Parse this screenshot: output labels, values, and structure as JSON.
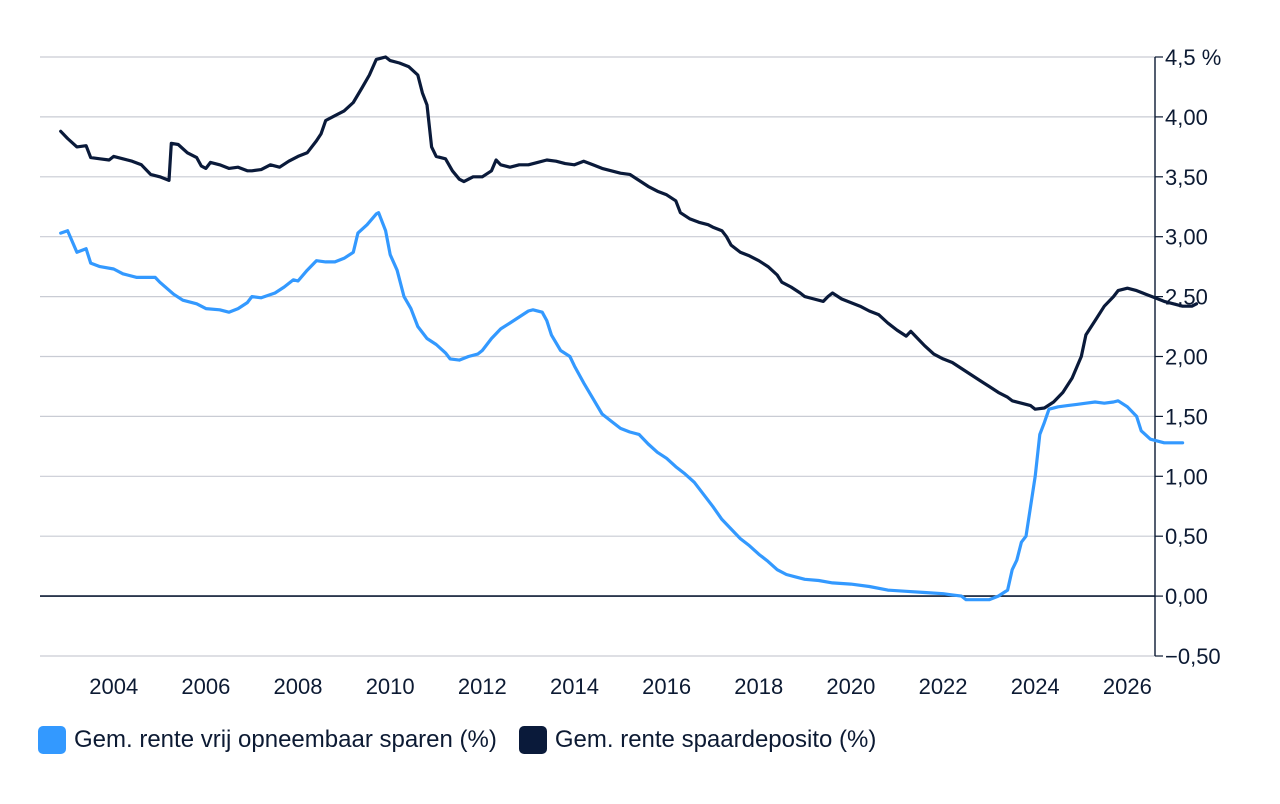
{
  "chart_data": {
    "type": "line",
    "title": "",
    "xlabel": "",
    "ylabel": "",
    "y_axis_side": "right",
    "ylim": [
      -0.5,
      4.5
    ],
    "xlim": [
      2002.4,
      2026.6
    ],
    "grid": true,
    "legend_position": "bottom-left",
    "y_ticks": [
      {
        "value": 4.5,
        "label": "4,5 %"
      },
      {
        "value": 4.0,
        "label": "4,00"
      },
      {
        "value": 3.5,
        "label": "3,50"
      },
      {
        "value": 3.0,
        "label": "3,00"
      },
      {
        "value": 2.5,
        "label": "2,50"
      },
      {
        "value": 2.0,
        "label": "2,00"
      },
      {
        "value": 1.5,
        "label": "1,50"
      },
      {
        "value": 1.0,
        "label": "1,00"
      },
      {
        "value": 0.5,
        "label": "0,50"
      },
      {
        "value": 0.0,
        "label": "0,00"
      },
      {
        "value": -0.5,
        "label": "−0,50"
      }
    ],
    "x_ticks": [
      {
        "value": 2004,
        "label": "2004"
      },
      {
        "value": 2006,
        "label": "2006"
      },
      {
        "value": 2008,
        "label": "2008"
      },
      {
        "value": 2010,
        "label": "2010"
      },
      {
        "value": 2012,
        "label": "2012"
      },
      {
        "value": 2014,
        "label": "2014"
      },
      {
        "value": 2016,
        "label": "2016"
      },
      {
        "value": 2018,
        "label": "2018"
      },
      {
        "value": 2020,
        "label": "2020"
      },
      {
        "value": 2022,
        "label": "2022"
      },
      {
        "value": 2024,
        "label": "2024"
      },
      {
        "value": 2026,
        "label": "2026"
      }
    ],
    "series": [
      {
        "name": "Gem. rente vrij opneembaar sparen (%)",
        "color": "#3399ff",
        "points": [
          [
            2002.85,
            3.03
          ],
          [
            2003.0,
            3.05
          ],
          [
            2003.2,
            2.87
          ],
          [
            2003.4,
            2.9
          ],
          [
            2003.5,
            2.78
          ],
          [
            2003.7,
            2.75
          ],
          [
            2004.0,
            2.73
          ],
          [
            2004.2,
            2.69
          ],
          [
            2004.5,
            2.66
          ],
          [
            2004.7,
            2.66
          ],
          [
            2004.9,
            2.66
          ],
          [
            2005.0,
            2.62
          ],
          [
            2005.3,
            2.52
          ],
          [
            2005.5,
            2.47
          ],
          [
            2005.8,
            2.44
          ],
          [
            2006.0,
            2.4
          ],
          [
            2006.3,
            2.39
          ],
          [
            2006.5,
            2.37
          ],
          [
            2006.7,
            2.4
          ],
          [
            2006.9,
            2.45
          ],
          [
            2007.0,
            2.5
          ],
          [
            2007.2,
            2.49
          ],
          [
            2007.5,
            2.53
          ],
          [
            2007.7,
            2.58
          ],
          [
            2007.9,
            2.64
          ],
          [
            2008.0,
            2.63
          ],
          [
            2008.2,
            2.72
          ],
          [
            2008.4,
            2.8
          ],
          [
            2008.6,
            2.79
          ],
          [
            2008.8,
            2.79
          ],
          [
            2009.0,
            2.82
          ],
          [
            2009.2,
            2.87
          ],
          [
            2009.3,
            3.03
          ],
          [
            2009.5,
            3.1
          ],
          [
            2009.7,
            3.19
          ],
          [
            2009.75,
            3.2
          ],
          [
            2009.9,
            3.05
          ],
          [
            2010.0,
            2.85
          ],
          [
            2010.15,
            2.72
          ],
          [
            2010.3,
            2.5
          ],
          [
            2010.45,
            2.4
          ],
          [
            2010.6,
            2.25
          ],
          [
            2010.8,
            2.15
          ],
          [
            2011.0,
            2.1
          ],
          [
            2011.2,
            2.03
          ],
          [
            2011.3,
            1.98
          ],
          [
            2011.5,
            1.97
          ],
          [
            2011.7,
            2.0
          ],
          [
            2011.9,
            2.02
          ],
          [
            2012.0,
            2.05
          ],
          [
            2012.2,
            2.15
          ],
          [
            2012.4,
            2.23
          ],
          [
            2012.6,
            2.28
          ],
          [
            2012.8,
            2.33
          ],
          [
            2013.0,
            2.38
          ],
          [
            2013.1,
            2.39
          ],
          [
            2013.3,
            2.37
          ],
          [
            2013.4,
            2.3
          ],
          [
            2013.5,
            2.18
          ],
          [
            2013.7,
            2.05
          ],
          [
            2013.9,
            2.0
          ],
          [
            2014.0,
            1.92
          ],
          [
            2014.2,
            1.78
          ],
          [
            2014.4,
            1.65
          ],
          [
            2014.6,
            1.52
          ],
          [
            2014.8,
            1.46
          ],
          [
            2015.0,
            1.4
          ],
          [
            2015.2,
            1.37
          ],
          [
            2015.4,
            1.35
          ],
          [
            2015.6,
            1.27
          ],
          [
            2015.8,
            1.2
          ],
          [
            2016.0,
            1.15
          ],
          [
            2016.2,
            1.08
          ],
          [
            2016.4,
            1.02
          ],
          [
            2016.6,
            0.95
          ],
          [
            2016.8,
            0.85
          ],
          [
            2017.0,
            0.75
          ],
          [
            2017.2,
            0.64
          ],
          [
            2017.4,
            0.56
          ],
          [
            2017.6,
            0.48
          ],
          [
            2017.8,
            0.42
          ],
          [
            2018.0,
            0.35
          ],
          [
            2018.2,
            0.29
          ],
          [
            2018.4,
            0.22
          ],
          [
            2018.6,
            0.18
          ],
          [
            2018.8,
            0.16
          ],
          [
            2019.0,
            0.14
          ],
          [
            2019.3,
            0.13
          ],
          [
            2019.6,
            0.11
          ],
          [
            2020.0,
            0.1
          ],
          [
            2020.4,
            0.08
          ],
          [
            2020.8,
            0.05
          ],
          [
            2021.2,
            0.04
          ],
          [
            2021.6,
            0.03
          ],
          [
            2022.0,
            0.02
          ],
          [
            2022.2,
            0.01
          ],
          [
            2022.4,
            0.0
          ],
          [
            2022.5,
            -0.03
          ],
          [
            2022.8,
            -0.03
          ],
          [
            2023.0,
            -0.03
          ],
          [
            2023.2,
            0.0
          ],
          [
            2023.4,
            0.05
          ],
          [
            2023.5,
            0.22
          ],
          [
            2023.6,
            0.3
          ],
          [
            2023.7,
            0.45
          ],
          [
            2023.8,
            0.5
          ],
          [
            2023.9,
            0.75
          ],
          [
            2024.0,
            1.0
          ],
          [
            2024.1,
            1.35
          ],
          [
            2024.2,
            1.45
          ],
          [
            2024.3,
            1.56
          ],
          [
            2024.5,
            1.58
          ],
          [
            2024.7,
            1.59
          ],
          [
            2024.9,
            1.6
          ],
          [
            2025.1,
            1.61
          ],
          [
            2025.3,
            1.62
          ],
          [
            2025.5,
            1.61
          ],
          [
            2025.7,
            1.62
          ],
          [
            2025.8,
            1.63
          ],
          [
            2026.0,
            1.58
          ],
          [
            2026.2,
            1.5
          ],
          [
            2026.3,
            1.38
          ],
          [
            2026.5,
            1.31
          ],
          [
            2026.8,
            1.28
          ],
          [
            2027.0,
            1.28
          ],
          [
            2027.2,
            1.28
          ]
        ]
      },
      {
        "name": "Gem. rente spaardeposito (%)",
        "color": "#0a1a3a",
        "points": [
          [
            2002.85,
            3.88
          ],
          [
            2003.0,
            3.82
          ],
          [
            2003.2,
            3.75
          ],
          [
            2003.4,
            3.76
          ],
          [
            2003.5,
            3.66
          ],
          [
            2003.7,
            3.65
          ],
          [
            2003.9,
            3.64
          ],
          [
            2004.0,
            3.67
          ],
          [
            2004.2,
            3.65
          ],
          [
            2004.4,
            3.63
          ],
          [
            2004.6,
            3.6
          ],
          [
            2004.8,
            3.52
          ],
          [
            2005.0,
            3.5
          ],
          [
            2005.2,
            3.47
          ],
          [
            2005.25,
            3.78
          ],
          [
            2005.4,
            3.77
          ],
          [
            2005.6,
            3.7
          ],
          [
            2005.8,
            3.66
          ],
          [
            2005.9,
            3.59
          ],
          [
            2006.0,
            3.57
          ],
          [
            2006.1,
            3.62
          ],
          [
            2006.3,
            3.6
          ],
          [
            2006.5,
            3.57
          ],
          [
            2006.7,
            3.58
          ],
          [
            2006.9,
            3.55
          ],
          [
            2007.0,
            3.55
          ],
          [
            2007.2,
            3.56
          ],
          [
            2007.4,
            3.6
          ],
          [
            2007.6,
            3.58
          ],
          [
            2007.8,
            3.63
          ],
          [
            2008.0,
            3.67
          ],
          [
            2008.2,
            3.7
          ],
          [
            2008.4,
            3.8
          ],
          [
            2008.5,
            3.86
          ],
          [
            2008.6,
            3.97
          ],
          [
            2008.8,
            4.01
          ],
          [
            2009.0,
            4.05
          ],
          [
            2009.2,
            4.12
          ],
          [
            2009.4,
            4.25
          ],
          [
            2009.55,
            4.35
          ],
          [
            2009.7,
            4.48
          ],
          [
            2009.9,
            4.5
          ],
          [
            2010.0,
            4.47
          ],
          [
            2010.2,
            4.45
          ],
          [
            2010.4,
            4.42
          ],
          [
            2010.6,
            4.35
          ],
          [
            2010.7,
            4.2
          ],
          [
            2010.8,
            4.1
          ],
          [
            2010.9,
            3.75
          ],
          [
            2011.0,
            3.67
          ],
          [
            2011.2,
            3.65
          ],
          [
            2011.35,
            3.55
          ],
          [
            2011.5,
            3.48
          ],
          [
            2011.6,
            3.46
          ],
          [
            2011.8,
            3.5
          ],
          [
            2012.0,
            3.5
          ],
          [
            2012.2,
            3.55
          ],
          [
            2012.3,
            3.64
          ],
          [
            2012.4,
            3.6
          ],
          [
            2012.6,
            3.58
          ],
          [
            2012.8,
            3.6
          ],
          [
            2013.0,
            3.6
          ],
          [
            2013.2,
            3.62
          ],
          [
            2013.4,
            3.64
          ],
          [
            2013.6,
            3.63
          ],
          [
            2013.8,
            3.61
          ],
          [
            2014.0,
            3.6
          ],
          [
            2014.2,
            3.63
          ],
          [
            2014.4,
            3.6
          ],
          [
            2014.6,
            3.57
          ],
          [
            2014.8,
            3.55
          ],
          [
            2015.0,
            3.53
          ],
          [
            2015.2,
            3.52
          ],
          [
            2015.4,
            3.47
          ],
          [
            2015.6,
            3.42
          ],
          [
            2015.8,
            3.38
          ],
          [
            2016.0,
            3.35
          ],
          [
            2016.2,
            3.3
          ],
          [
            2016.3,
            3.2
          ],
          [
            2016.5,
            3.15
          ],
          [
            2016.7,
            3.12
          ],
          [
            2016.9,
            3.1
          ],
          [
            2017.0,
            3.08
          ],
          [
            2017.2,
            3.05
          ],
          [
            2017.3,
            3.0
          ],
          [
            2017.4,
            2.93
          ],
          [
            2017.6,
            2.87
          ],
          [
            2017.8,
            2.84
          ],
          [
            2018.0,
            2.8
          ],
          [
            2018.2,
            2.75
          ],
          [
            2018.4,
            2.68
          ],
          [
            2018.5,
            2.62
          ],
          [
            2018.7,
            2.58
          ],
          [
            2018.9,
            2.53
          ],
          [
            2019.0,
            2.5
          ],
          [
            2019.2,
            2.48
          ],
          [
            2019.4,
            2.46
          ],
          [
            2019.5,
            2.5
          ],
          [
            2019.6,
            2.53
          ],
          [
            2019.8,
            2.48
          ],
          [
            2020.0,
            2.45
          ],
          [
            2020.2,
            2.42
          ],
          [
            2020.4,
            2.38
          ],
          [
            2020.6,
            2.35
          ],
          [
            2020.8,
            2.28
          ],
          [
            2021.0,
            2.22
          ],
          [
            2021.2,
            2.17
          ],
          [
            2021.3,
            2.21
          ],
          [
            2021.4,
            2.17
          ],
          [
            2021.6,
            2.09
          ],
          [
            2021.8,
            2.02
          ],
          [
            2022.0,
            1.98
          ],
          [
            2022.2,
            1.95
          ],
          [
            2022.4,
            1.9
          ],
          [
            2022.6,
            1.85
          ],
          [
            2022.8,
            1.8
          ],
          [
            2023.0,
            1.75
          ],
          [
            2023.2,
            1.7
          ],
          [
            2023.4,
            1.66
          ],
          [
            2023.5,
            1.63
          ],
          [
            2023.7,
            1.61
          ],
          [
            2023.9,
            1.59
          ],
          [
            2024.0,
            1.56
          ],
          [
            2024.2,
            1.57
          ],
          [
            2024.4,
            1.62
          ],
          [
            2024.6,
            1.7
          ],
          [
            2024.8,
            1.82
          ],
          [
            2025.0,
            2.0
          ],
          [
            2025.1,
            2.18
          ],
          [
            2025.3,
            2.3
          ],
          [
            2025.5,
            2.42
          ],
          [
            2025.7,
            2.5
          ],
          [
            2025.8,
            2.55
          ],
          [
            2026.0,
            2.57
          ],
          [
            2026.2,
            2.55
          ],
          [
            2026.4,
            2.52
          ],
          [
            2026.6,
            2.49
          ],
          [
            2026.8,
            2.46
          ],
          [
            2027.0,
            2.44
          ],
          [
            2027.2,
            2.42
          ],
          [
            2027.4,
            2.42
          ],
          [
            2027.5,
            2.44
          ]
        ]
      }
    ]
  }
}
